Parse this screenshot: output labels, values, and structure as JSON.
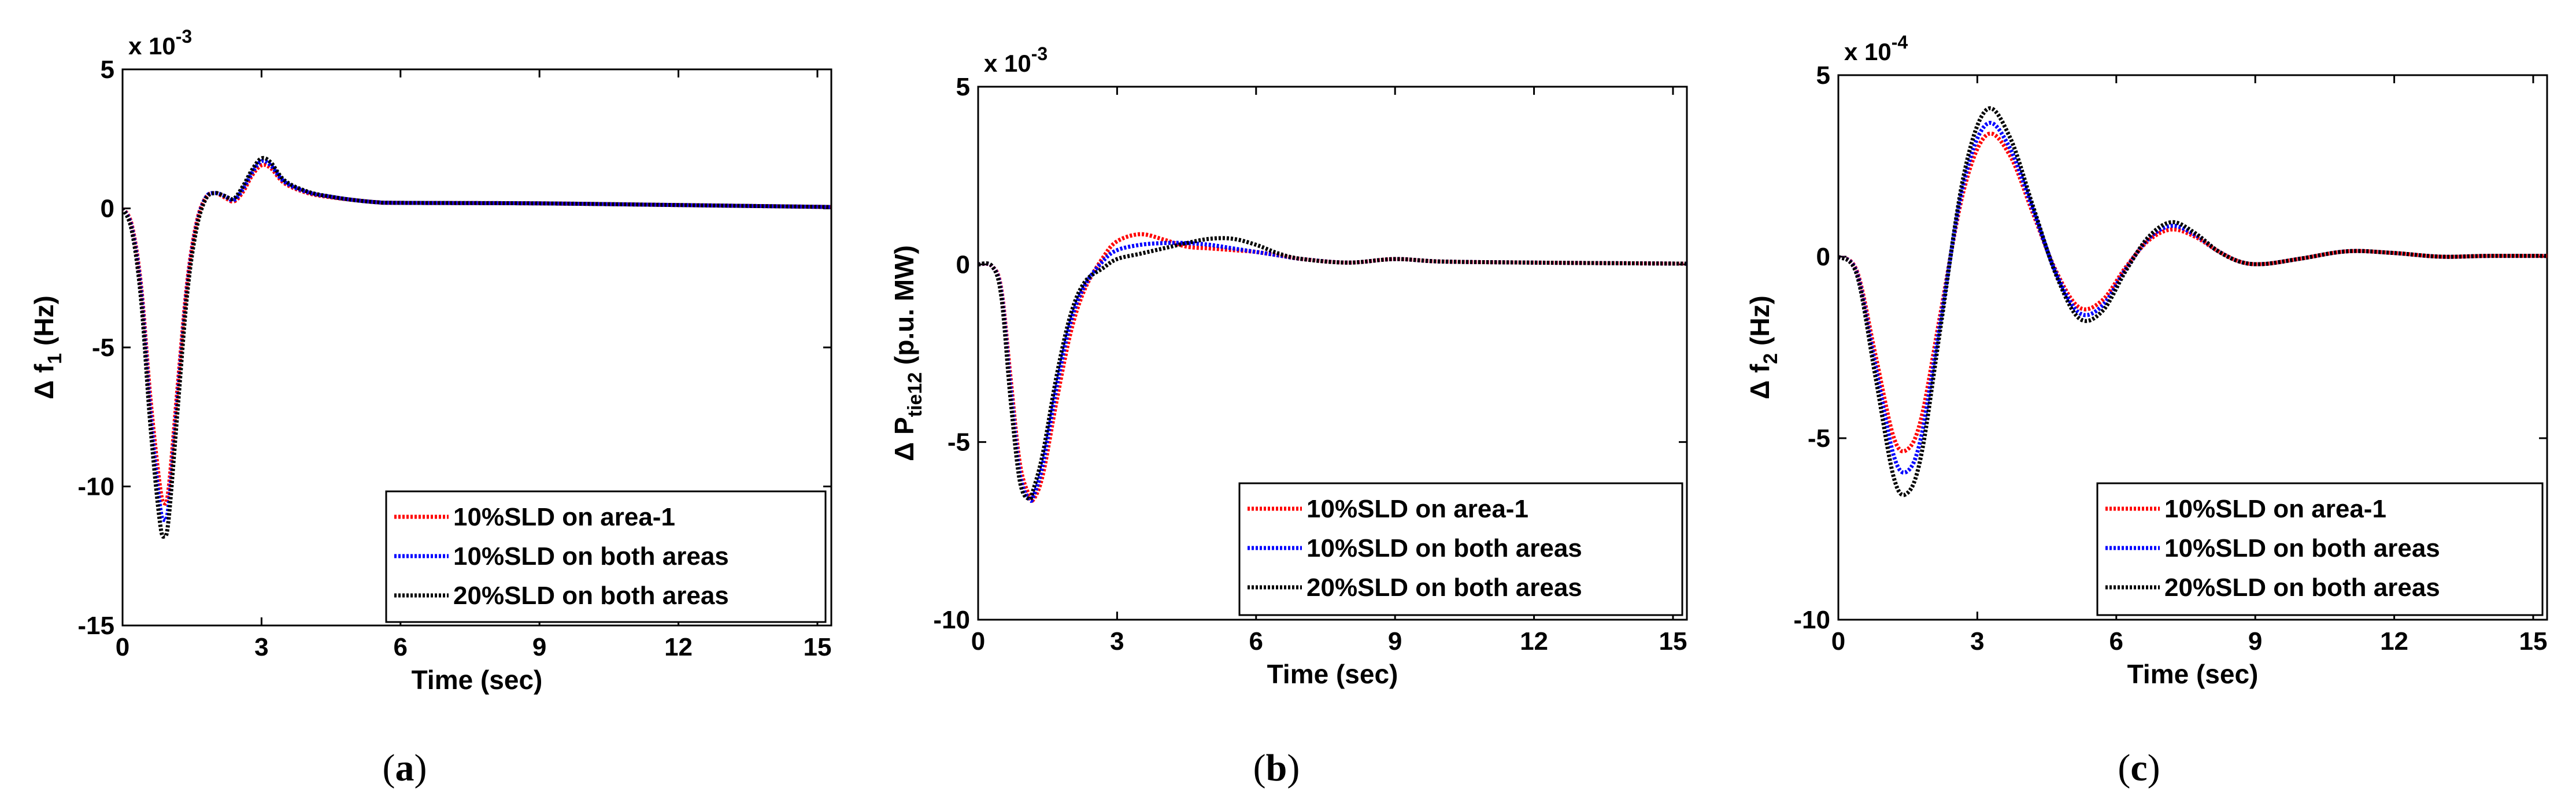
{
  "chart_data": [
    {
      "type": "line",
      "panel_label": "a",
      "xlabel": "Time (sec)",
      "ylabel_main": "Δ f",
      "ylabel_sub": "1",
      "ylabel_unit": " (Hz)",
      "y_multiplier": "x 10",
      "y_multiplier_exp": "-3",
      "xlim": [
        0,
        15.3
      ],
      "ylim": [
        -15,
        5
      ],
      "xticks": [
        0,
        3,
        6,
        9,
        12,
        15
      ],
      "yticks": [
        -15,
        -10,
        -5,
        0,
        5
      ],
      "legend_position": "bottom-right",
      "x": [
        0,
        0.2,
        0.4,
        0.6,
        0.8,
        0.9,
        1.0,
        1.2,
        1.4,
        1.6,
        1.8,
        2.0,
        2.2,
        2.4,
        2.6,
        2.8,
        3.0,
        3.2,
        3.5,
        4.0,
        4.5,
        5.0,
        5.5,
        6,
        9,
        12,
        15.3
      ],
      "series": [
        {
          "name": "10%SLD on area-1",
          "color": "#ff0000",
          "values": [
            0,
            -0.6,
            -2.8,
            -6.8,
            -9.9,
            -10.6,
            -10.0,
            -6.2,
            -2.6,
            -0.5,
            0.4,
            0.55,
            0.4,
            0.25,
            0.6,
            1.2,
            1.55,
            1.45,
            0.9,
            0.55,
            0.4,
            0.3,
            0.22,
            0.2,
            0.18,
            0.12,
            0.05
          ]
        },
        {
          "name": "10%SLD on both areas",
          "color": "#0000ff",
          "values": [
            0,
            -0.7,
            -3.0,
            -7.3,
            -10.6,
            -11.2,
            -10.6,
            -6.6,
            -2.8,
            -0.6,
            0.4,
            0.55,
            0.45,
            0.3,
            0.7,
            1.3,
            1.7,
            1.55,
            0.95,
            0.58,
            0.42,
            0.3,
            0.22,
            0.2,
            0.18,
            0.12,
            0.05
          ]
        },
        {
          "name": "20%SLD on both areas",
          "color": "#000000",
          "values": [
            0,
            -0.8,
            -3.3,
            -7.8,
            -11.2,
            -11.8,
            -11.1,
            -7.0,
            -3.0,
            -0.7,
            0.35,
            0.55,
            0.45,
            0.35,
            0.8,
            1.4,
            1.8,
            1.65,
            1.0,
            0.6,
            0.42,
            0.3,
            0.22,
            0.2,
            0.18,
            0.12,
            0.05
          ]
        }
      ]
    },
    {
      "type": "line",
      "panel_label": "b",
      "xlabel": "Time (sec)",
      "ylabel_main": "Δ P",
      "ylabel_sub": "tie12",
      "ylabel_unit": " (p.u. MW)",
      "y_multiplier": "x 10",
      "y_multiplier_exp": "-3",
      "xlim": [
        0,
        15.3
      ],
      "ylim": [
        -10,
        5
      ],
      "xticks": [
        0,
        3,
        6,
        9,
        12,
        15
      ],
      "yticks": [
        -10,
        -5,
        0,
        5
      ],
      "legend_position": "bottom-right",
      "x": [
        0,
        0.3,
        0.5,
        0.7,
        0.9,
        1.1,
        1.2,
        1.4,
        1.7,
        2.0,
        2.3,
        2.7,
        3.0,
        3.5,
        4.0,
        4.5,
        5.0,
        5.5,
        6.0,
        6.5,
        7.0,
        8,
        9,
        10,
        12,
        15.3
      ],
      "series": [
        {
          "name": "10%SLD on area-1",
          "color": "#ff0000",
          "values": [
            0,
            -0.05,
            -0.7,
            -3.2,
            -5.6,
            -6.5,
            -6.6,
            -5.9,
            -3.8,
            -1.9,
            -0.7,
            0.2,
            0.65,
            0.85,
            0.7,
            0.5,
            0.45,
            0.4,
            0.35,
            0.25,
            0.15,
            0.05,
            0.15,
            0.08,
            0.05,
            0.02
          ]
        },
        {
          "name": "10%SLD on both areas",
          "color": "#0000ff",
          "values": [
            0,
            -0.05,
            -0.8,
            -3.5,
            -5.9,
            -6.6,
            -6.5,
            -5.6,
            -3.4,
            -1.6,
            -0.6,
            0.1,
            0.4,
            0.55,
            0.6,
            0.6,
            0.55,
            0.45,
            0.35,
            0.25,
            0.15,
            0.05,
            0.15,
            0.08,
            0.05,
            0.02
          ]
        },
        {
          "name": "20%SLD on both areas",
          "color": "#000000",
          "values": [
            0,
            -0.05,
            -0.9,
            -3.8,
            -6.1,
            -6.6,
            -6.3,
            -5.3,
            -3.1,
            -1.4,
            -0.5,
            -0.1,
            0.15,
            0.3,
            0.45,
            0.6,
            0.72,
            0.72,
            0.55,
            0.3,
            0.15,
            0.05,
            0.15,
            0.08,
            0.05,
            0.02
          ]
        }
      ]
    },
    {
      "type": "line",
      "panel_label": "c",
      "xlabel": "Time (sec)",
      "ylabel_main": "Δ f",
      "ylabel_sub": "2",
      "ylabel_unit": " (Hz)",
      "y_multiplier": "x 10",
      "y_multiplier_exp": "-4",
      "xlim": [
        0,
        15.3
      ],
      "ylim": [
        -10,
        5
      ],
      "xticks": [
        0,
        3,
        6,
        9,
        12,
        15
      ],
      "yticks": [
        -10,
        -5,
        0,
        5
      ],
      "legend_position": "bottom-right",
      "x": [
        0,
        0.4,
        0.8,
        1.2,
        1.5,
        1.8,
        2.2,
        2.7,
        3.2,
        3.7,
        4.2,
        4.7,
        5.2,
        5.7,
        6.2,
        6.7,
        7.2,
        7.7,
        8.2,
        8.7,
        9.2,
        10,
        11,
        12,
        13,
        14,
        15.3
      ],
      "series": [
        {
          "name": "10%SLD on area-1",
          "color": "#ff0000",
          "values": [
            0,
            -0.4,
            -2.7,
            -5.0,
            -5.3,
            -4.4,
            -1.6,
            1.8,
            3.35,
            2.8,
            1.2,
            -0.4,
            -1.4,
            -1.2,
            -0.3,
            0.45,
            0.75,
            0.55,
            0.15,
            -0.15,
            -0.2,
            -0.05,
            0.15,
            0.1,
            0.0,
            0.02,
            0.02
          ]
        },
        {
          "name": "10%SLD on both areas",
          "color": "#0000ff",
          "values": [
            0,
            -0.45,
            -3.0,
            -5.5,
            -5.9,
            -4.9,
            -1.8,
            2.0,
            3.65,
            3.0,
            1.3,
            -0.45,
            -1.55,
            -1.35,
            -0.35,
            0.5,
            0.85,
            0.6,
            0.15,
            -0.15,
            -0.2,
            -0.05,
            0.15,
            0.1,
            0.0,
            0.02,
            0.02
          ]
        },
        {
          "name": "20%SLD on both areas",
          "color": "#000000",
          "values": [
            0,
            -0.5,
            -3.3,
            -6.1,
            -6.5,
            -5.4,
            -2.0,
            2.2,
            4.05,
            3.3,
            1.4,
            -0.5,
            -1.7,
            -1.5,
            -0.4,
            0.55,
            0.95,
            0.65,
            0.15,
            -0.15,
            -0.2,
            -0.05,
            0.15,
            0.1,
            0.0,
            0.02,
            0.02
          ]
        }
      ]
    }
  ]
}
